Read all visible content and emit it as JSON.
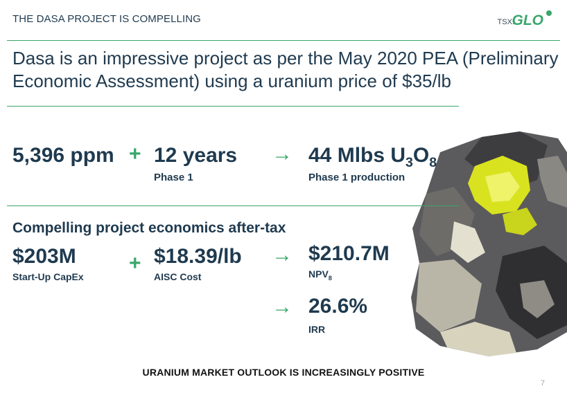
{
  "header": {
    "title": "THE DASA PROJECT IS COMPELLING"
  },
  "logo": {
    "prefix": "TSX:",
    "name": "GLO"
  },
  "headline": "Dasa is an impressive project as per the May 2020 PEA (Preliminary Economic Assessment) using a uranium price of $35/lb",
  "row1": {
    "grade": "5,396 ppm",
    "plus": "+",
    "years": "12 years",
    "years_label": "Phase 1",
    "arrow": "→",
    "production_prefix": "44 Mlbs U",
    "production_sub1": "3",
    "production_mid": "O",
    "production_sub2": "8",
    "production_label": "Phase 1 production"
  },
  "economics": {
    "title": "Compelling project economics after-tax",
    "capex": "$203M",
    "capex_label": "Start-Up CapEx",
    "plus": "+",
    "aisc": "$18.39/lb",
    "aisc_label": "AISC Cost",
    "arrow": "→",
    "npv": "$210.7M",
    "npv_label": "NPV",
    "npv_sub": "8",
    "irr_arrow": "→",
    "irr": "26.6%",
    "irr_label": "IRR"
  },
  "image": {
    "icon": "uranium-ore-rock"
  },
  "footer": {
    "message": "URANIUM MARKET OUTLOOK IS INCREASINGLY POSITIVE",
    "page": "7"
  },
  "colors": {
    "accent": "#3aa66a",
    "text": "#1f3a4f",
    "ore_yellow": "#d9e21f"
  }
}
